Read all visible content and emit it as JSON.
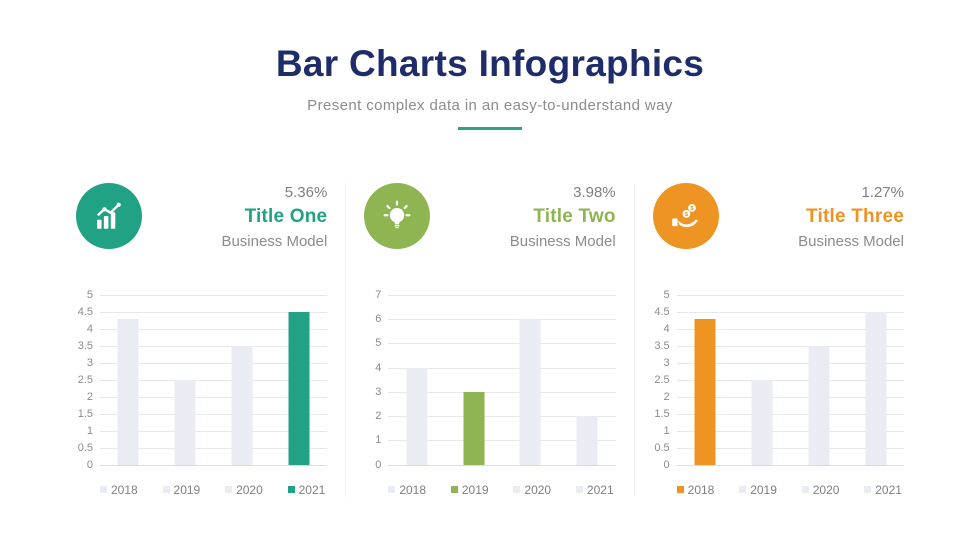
{
  "header": {
    "title": "Bar Charts Infographics",
    "subtitle": "Present complex data in an easy-to-understand way",
    "title_color": "#1e2c6a",
    "underline_color": "#2aa58a"
  },
  "panels": [
    {
      "percentage": "5.36%",
      "title": "Title One",
      "subtitle": "Business Model",
      "accent_color": "#21a285",
      "icon": "growth-chart-icon"
    },
    {
      "percentage": "3.98%",
      "title": "Title Two",
      "subtitle": "Business Model",
      "accent_color": "#8eb551",
      "icon": "lightbulb-icon"
    },
    {
      "percentage": "1.27%",
      "title": "Title Three",
      "subtitle": "Business Model",
      "accent_color": "#ee9422",
      "icon": "hand-coins-icon"
    }
  ],
  "chart_data": [
    {
      "type": "bar",
      "title": "Title One",
      "categories": [
        "2018",
        "2019",
        "2020",
        "2021"
      ],
      "values": [
        4.3,
        2.5,
        3.5,
        4.5
      ],
      "highlight_index": 3,
      "highlight_color": "#21a285",
      "default_bar_color": "#e9edf3",
      "ylim": [
        0,
        5
      ],
      "ytick_step": 0.5,
      "grid": true,
      "legend_position": "bottom"
    },
    {
      "type": "bar",
      "title": "Title Two",
      "categories": [
        "2018",
        "2019",
        "2020",
        "2021"
      ],
      "values": [
        4,
        3,
        6,
        2
      ],
      "highlight_index": 1,
      "highlight_color": "#8eb551",
      "default_bar_color": "#e9edf3",
      "ylim": [
        0,
        7
      ],
      "ytick_step": 1,
      "grid": true,
      "legend_position": "bottom"
    },
    {
      "type": "bar",
      "title": "Title Three",
      "categories": [
        "2018",
        "2019",
        "2020",
        "2021"
      ],
      "values": [
        4.3,
        2.5,
        3.5,
        4.5
      ],
      "highlight_index": 0,
      "highlight_color": "#ee9422",
      "default_bar_color": "#e9edf3",
      "ylim": [
        0,
        5
      ],
      "ytick_step": 0.5,
      "grid": true,
      "legend_position": "bottom"
    }
  ]
}
